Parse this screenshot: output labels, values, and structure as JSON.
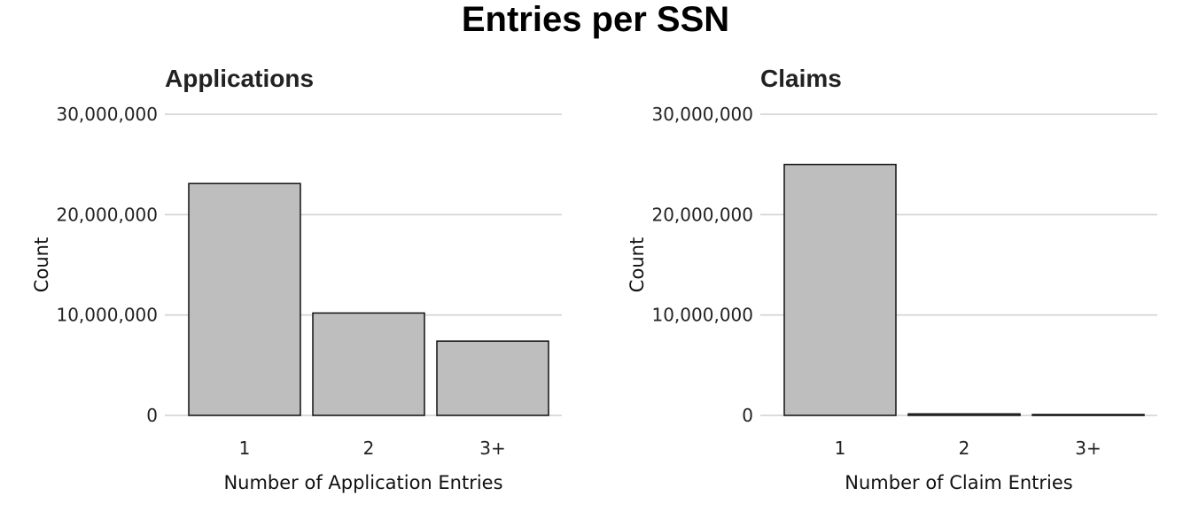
{
  "title": "Entries per SSN",
  "chart_data": [
    {
      "type": "bar",
      "title": "Applications",
      "xlabel": "Number of Application Entries",
      "ylabel": "Count",
      "categories": [
        "1",
        "2",
        "3+"
      ],
      "values": [
        23100000,
        10200000,
        7400000
      ],
      "ylim": [
        0,
        30000000
      ],
      "yticks": [
        0,
        10000000,
        20000000,
        30000000
      ],
      "ytick_labels": [
        "0",
        "10,000,000",
        "20,000,000",
        "30,000,000"
      ],
      "bar_color": "#bebebe",
      "grid": true
    },
    {
      "type": "bar",
      "title": "Claims",
      "xlabel": "Number of Claim Entries",
      "ylabel": "Count",
      "categories": [
        "1",
        "2",
        "3+"
      ],
      "values": [
        25000000,
        150000,
        50000
      ],
      "ylim": [
        0,
        30000000
      ],
      "yticks": [
        0,
        10000000,
        20000000,
        30000000
      ],
      "ytick_labels": [
        "0",
        "10,000,000",
        "20,000,000",
        "30,000,000"
      ],
      "bar_color": "#bebebe",
      "grid": true
    }
  ]
}
